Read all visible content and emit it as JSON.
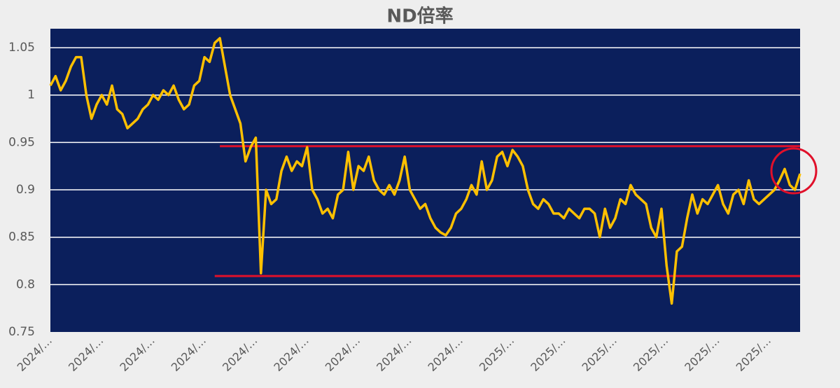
{
  "chart_data": {
    "type": "line",
    "title": "ND倍率",
    "categories": [
      "2024/…",
      null,
      null,
      null,
      null,
      null,
      null,
      null,
      null,
      null,
      "2024/…",
      null,
      null,
      null,
      null,
      null,
      null,
      null,
      null,
      null,
      "2024/…",
      null,
      null,
      null,
      null,
      null,
      null,
      null,
      null,
      null,
      "2024/…",
      null,
      null,
      null,
      null,
      null,
      null,
      null,
      null,
      null,
      "2024/…",
      null,
      null,
      null,
      null,
      null,
      null,
      null,
      null,
      null,
      "2024/…",
      null,
      null,
      null,
      null,
      null,
      null,
      null,
      null,
      null,
      "2024/…",
      null,
      null,
      null,
      null,
      null,
      null,
      null,
      null,
      null,
      "2024/…",
      null,
      null,
      null,
      null,
      null,
      null,
      null,
      null,
      null,
      "2024/…",
      null,
      null,
      null,
      null,
      null,
      null,
      null,
      null,
      null,
      "2025/…",
      null,
      null,
      null,
      null,
      null,
      null,
      null,
      null,
      null,
      "2025/…",
      null,
      null,
      null,
      null,
      null,
      null,
      null,
      null,
      null,
      "2025/…",
      null,
      null,
      null,
      null,
      null,
      null,
      null,
      null,
      null,
      "2025/…",
      null,
      null,
      null,
      null,
      null,
      null,
      null,
      null,
      null,
      "2025/…",
      null,
      null,
      null,
      null,
      null,
      null,
      null,
      null,
      null,
      "2025/…",
      null,
      null,
      null,
      null,
      null,
      null
    ],
    "values": [
      1.01,
      1.02,
      1.005,
      1.015,
      1.03,
      1.04,
      1.04,
      1.0,
      0.975,
      0.99,
      1.0,
      0.99,
      1.01,
      0.985,
      0.98,
      0.965,
      0.97,
      0.975,
      0.985,
      0.99,
      1.0,
      0.995,
      1.005,
      1.0,
      1.01,
      0.995,
      0.985,
      0.99,
      1.01,
      1.015,
      1.04,
      1.035,
      1.055,
      1.06,
      1.03,
      1.0,
      0.985,
      0.97,
      0.93,
      0.945,
      0.955,
      0.812,
      0.9,
      0.885,
      0.89,
      0.92,
      0.935,
      0.92,
      0.93,
      0.925,
      0.945,
      0.9,
      0.89,
      0.875,
      0.88,
      0.87,
      0.895,
      0.9,
      0.94,
      0.9,
      0.925,
      0.92,
      0.935,
      0.91,
      0.9,
      0.895,
      0.905,
      0.895,
      0.91,
      0.935,
      0.9,
      0.89,
      0.88,
      0.885,
      0.87,
      0.86,
      0.855,
      0.852,
      0.86,
      0.875,
      0.88,
      0.89,
      0.905,
      0.895,
      0.93,
      0.9,
      0.91,
      0.935,
      0.94,
      0.925,
      0.942,
      0.935,
      0.925,
      0.9,
      0.885,
      0.88,
      0.89,
      0.885,
      0.875,
      0.875,
      0.87,
      0.88,
      0.875,
      0.87,
      0.88,
      0.88,
      0.875,
      0.85,
      0.88,
      0.86,
      0.87,
      0.89,
      0.885,
      0.905,
      0.895,
      0.89,
      0.885,
      0.86,
      0.85,
      0.88,
      0.82,
      0.78,
      0.835,
      0.84,
      0.87,
      0.895,
      0.875,
      0.89,
      0.885,
      0.895,
      0.905,
      0.885,
      0.875,
      0.895,
      0.9,
      0.885,
      0.91,
      0.89,
      0.885,
      0.89,
      0.895,
      0.9,
      0.91,
      0.922,
      0.905,
      0.9,
      0.917
    ],
    "color": "#ffc000",
    "ylim": [
      0.75,
      1.07
    ],
    "yticks": [
      0.75,
      0.8,
      0.85,
      0.9,
      0.95,
      1,
      1.05
    ],
    "grid": true,
    "reference_lines": [
      {
        "value": 0.946,
        "from": 33,
        "color": "#e0102a"
      },
      {
        "value": 0.809,
        "from": 32,
        "color": "#e0102a"
      }
    ]
  }
}
